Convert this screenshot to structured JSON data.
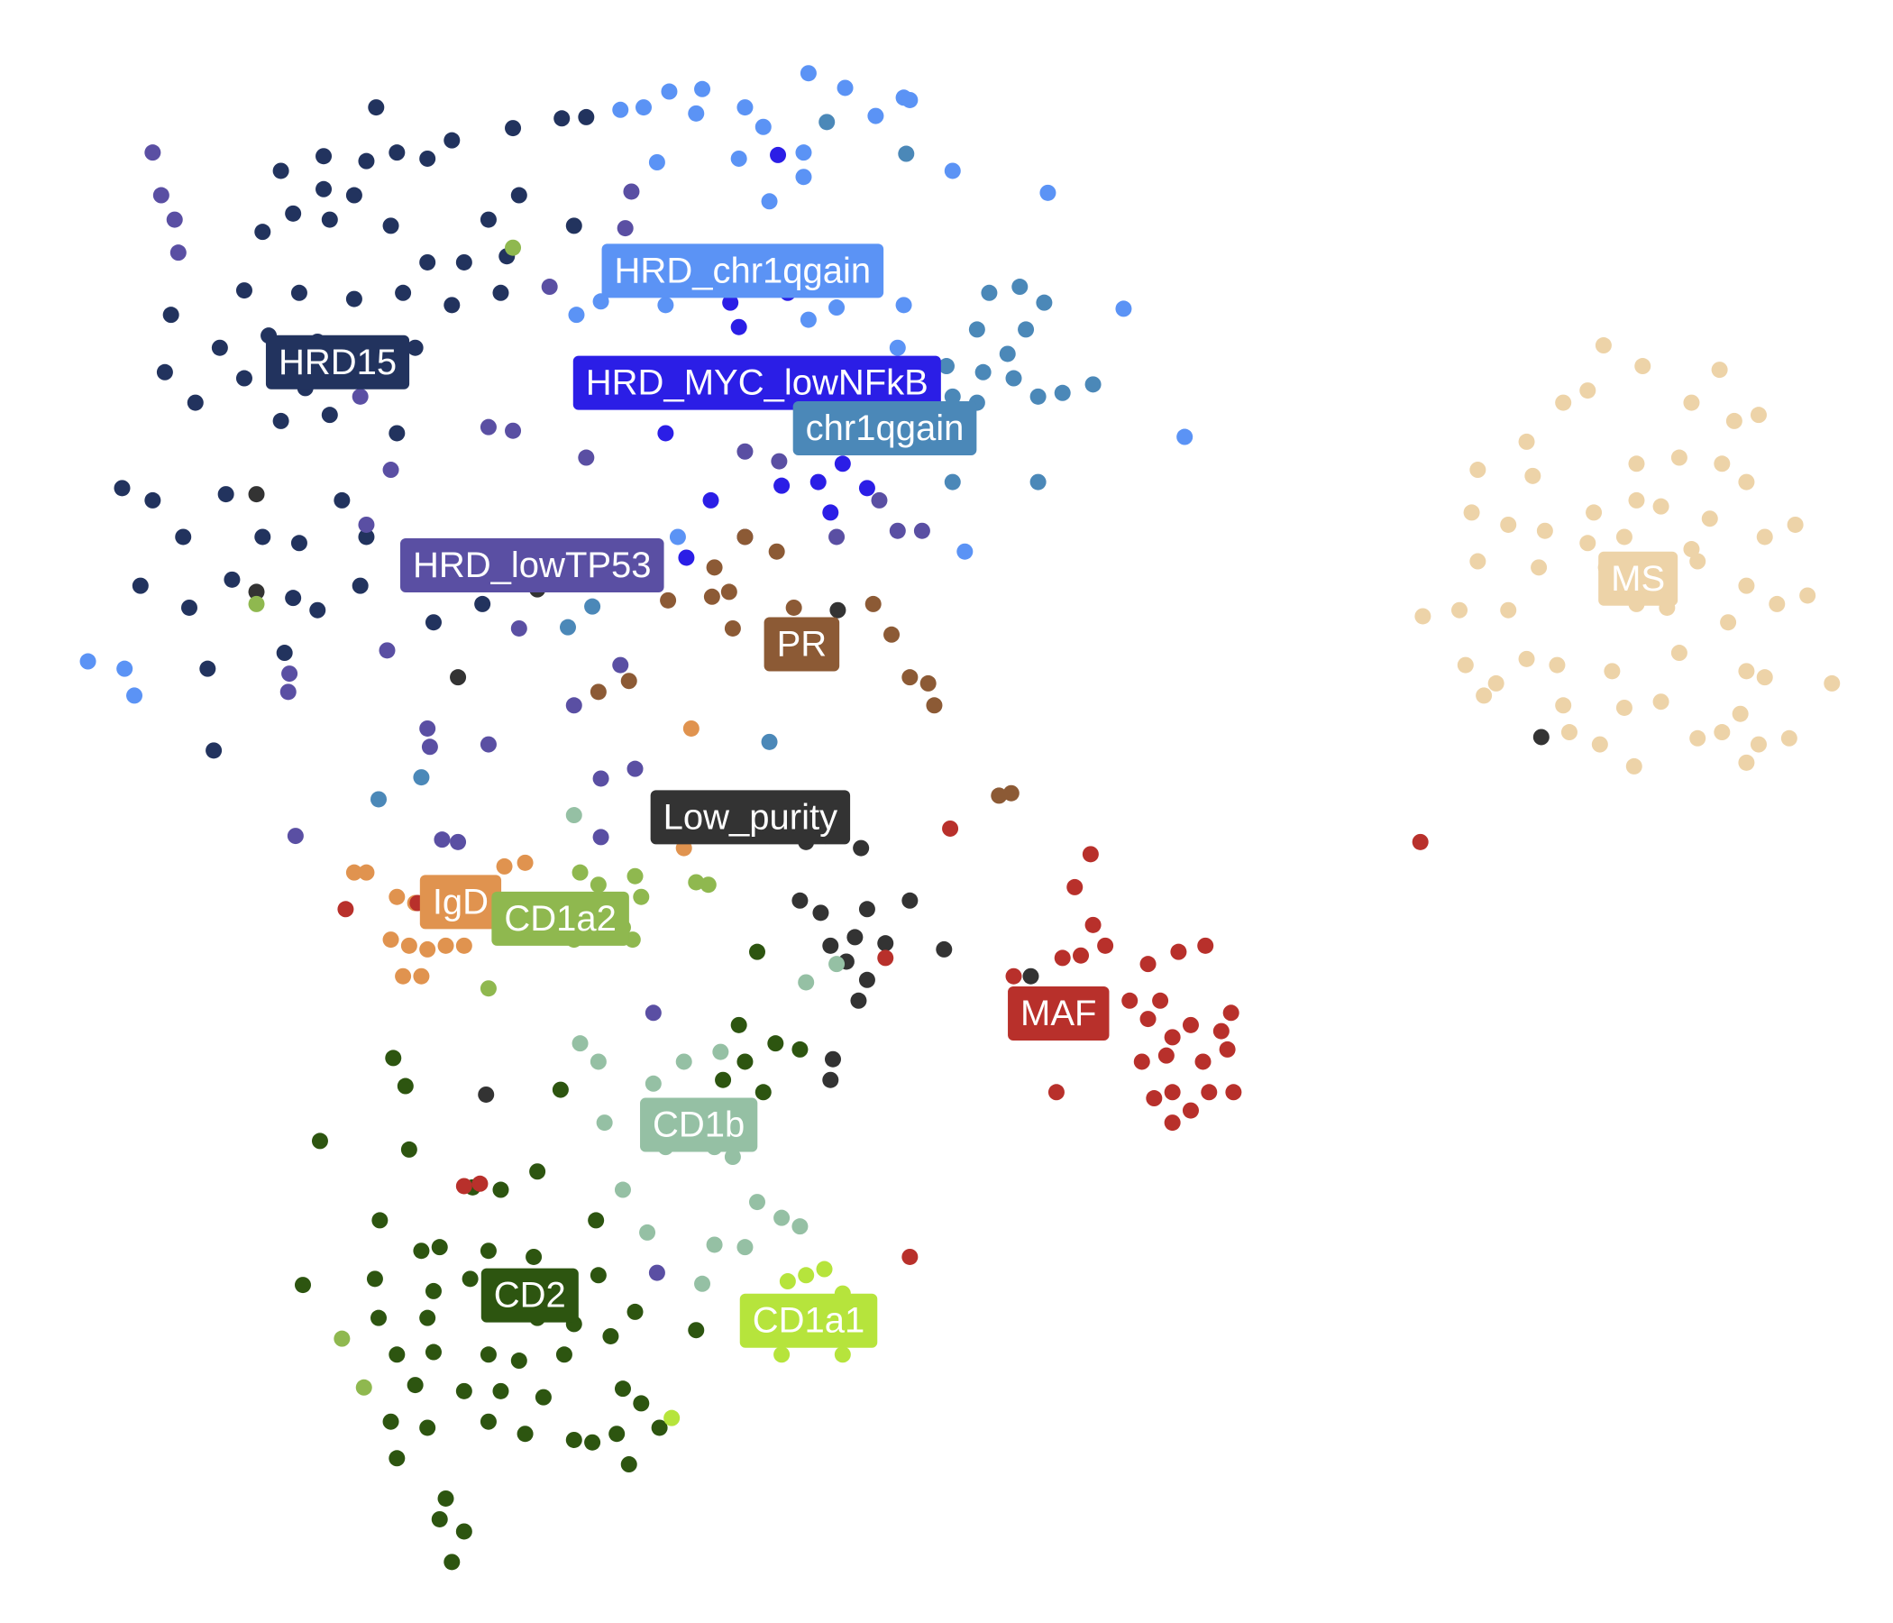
{
  "chart_data": {
    "type": "scatter",
    "xlim": [
      0,
      1550
    ],
    "ylim": [
      1330,
      0
    ],
    "series": [
      {
        "name": "HRD15",
        "color": "#22335e",
        "x": [
          308,
          230,
          265,
          300,
          325,
          350,
          370,
          265,
          290,
          240,
          215,
          270,
          320,
          350,
          380,
          415,
          200,
          245,
          290,
          330,
          370,
          410,
          140,
          180,
          220,
          260,
          300,
          340,
          135,
          200,
          250,
          160,
          230,
          270,
          325,
          100,
          125,
          150,
          185,
          215,
          245,
          280,
          300,
          115,
          190,
          240,
          260,
          155,
          295,
          355,
          395,
          170,
          233,
          175,
          420,
          460,
          480,
          425,
          470,
          400
        ],
        "y": [
          88,
          140,
          128,
          132,
          125,
          130,
          115,
          155,
          160,
          175,
          190,
          180,
          185,
          215,
          215,
          210,
          238,
          240,
          245,
          240,
          250,
          240,
          258,
          285,
          275,
          280,
          290,
          285,
          305,
          310,
          318,
          330,
          345,
          340,
          355,
          400,
          410,
          440,
          405,
          440,
          445,
          410,
          440,
          480,
          475,
          490,
          500,
          498,
          480,
          510,
          495,
          548,
          535,
          615,
          105,
          97,
          96,
          160,
          185,
          180
        ]
      },
      {
        "name": "HRD_chr1qgain",
        "color": "#5b93f5",
        "x": [
          548,
          575,
          662,
          692,
          740,
          745,
          508,
          527,
          570,
          610,
          625,
          717,
          538,
          605,
          658,
          780,
          858,
          492,
          472,
          520,
          545,
          610,
          662,
          685,
          740,
          920,
          970,
          790,
          72,
          102,
          110,
          513,
          555,
          735,
          760,
          658,
          630
        ],
        "y": [
          75,
          73,
          60,
          72,
          80,
          82,
          90,
          88,
          93,
          88,
          104,
          95,
          133,
          130,
          145,
          140,
          158,
          247,
          258,
          230,
          250,
          225,
          262,
          252,
          250,
          253,
          358,
          452,
          542,
          548,
          570,
          475,
          440,
          285,
          318,
          125,
          165
        ]
      },
      {
        "name": "HRD_MYC_lowNFkB",
        "color": "#2b1ee6",
        "x": [
          637,
          550,
          580,
          600,
          620,
          645,
          598,
          605,
          560,
          595,
          630,
          545,
          580,
          658,
          700,
          582,
          562,
          640,
          670,
          690,
          710,
          680
        ],
        "y": [
          127,
          210,
          210,
          225,
          235,
          240,
          248,
          268,
          300,
          305,
          300,
          355,
          325,
          345,
          350,
          410,
          457,
          398,
          395,
          380,
          400,
          420
        ]
      },
      {
        "name": "chr1qgain",
        "color": "#4b88b8",
        "x": [
          677,
          742,
          810,
          835,
          855,
          800,
          825,
          840,
          775,
          805,
          830,
          870,
          895,
          850,
          725,
          745,
          780,
          800,
          465,
          485,
          345,
          310,
          630,
          512,
          780,
          850
        ],
        "y": [
          100,
          126,
          240,
          235,
          248,
          270,
          290,
          270,
          300,
          305,
          310,
          322,
          315,
          325,
          318,
          320,
          325,
          330,
          514,
          497,
          637,
          655,
          608,
          475,
          395,
          395
        ]
      },
      {
        "name": "HRD_lowTP53",
        "color": "#5a4fa3",
        "x": [
          125,
          132,
          143,
          146,
          517,
          512,
          450,
          712,
          400,
          420,
          480,
          320,
          300,
          610,
          638,
          720,
          735,
          755,
          685,
          610,
          425,
          317,
          237,
          236,
          350,
          400,
          352,
          470,
          508,
          492,
          520,
          242,
          375,
          362,
          492,
          535,
          538,
          295
        ],
        "y": [
          125,
          160,
          180,
          207,
          157,
          187,
          235,
          230,
          350,
          353,
          375,
          385,
          430,
          370,
          378,
          410,
          435,
          435,
          440,
          440,
          515,
          533,
          552,
          567,
          597,
          610,
          612,
          578,
          545,
          638,
          630,
          685,
          690,
          688,
          686,
          830,
          1043,
          325
        ]
      },
      {
        "name": "PR",
        "color": "#8c5a35",
        "x": [
          547,
          583,
          597,
          610,
          636,
          650,
          600,
          640,
          640,
          675,
          715,
          730,
          745,
          760,
          765,
          515,
          490,
          828,
          818,
          585
        ],
        "y": [
          492,
          489,
          485,
          440,
          452,
          498,
          515,
          520,
          540,
          528,
          495,
          520,
          555,
          560,
          578,
          558,
          567,
          650,
          652,
          465
        ]
      },
      {
        "name": "Low_purity",
        "color": "#333333",
        "x": [
          320,
          210,
          210,
          380,
          425,
          440,
          485,
          375,
          597,
          630,
          660,
          676,
          705,
          655,
          672,
          710,
          745,
          680,
          700,
          725,
          773,
          693,
          710,
          703,
          682,
          680,
          398,
          844,
          1262,
          686
        ],
        "y": [
          305,
          405,
          485,
          465,
          475,
          483,
          465,
          555,
          670,
          685,
          690,
          685,
          695,
          738,
          748,
          745,
          738,
          775,
          768,
          773,
          778,
          788,
          803,
          820,
          868,
          885,
          897,
          800,
          604,
          500
        ]
      },
      {
        "name": "IgD",
        "color": "#e0934f",
        "x": [
          566,
          413,
          430,
          325,
          340,
          385,
          320,
          335,
          350,
          365,
          380,
          330,
          345,
          560,
          290,
          300
        ],
        "y": [
          597,
          710,
          707,
          735,
          740,
          740,
          770,
          775,
          778,
          775,
          775,
          800,
          800,
          695,
          715,
          715
        ]
      },
      {
        "name": "CD1a2",
        "color": "#8fb84f",
        "x": [
          420,
          490,
          520,
          525,
          570,
          580,
          500,
          510,
          518,
          470,
          400,
          575,
          280,
          298,
          210,
          475
        ],
        "y": [
          203,
          725,
          718,
          735,
          723,
          725,
          755,
          760,
          770,
          770,
          810,
          908,
          1097,
          1137,
          495,
          715
        ]
      },
      {
        "name": "CD1b",
        "color": "#95c0a4",
        "x": [
          470,
          475,
          490,
          535,
          560,
          590,
          660,
          685,
          495,
          545,
          585,
          600,
          600,
          620,
          640,
          655,
          585,
          610,
          575,
          530,
          510
        ],
        "y": [
          668,
          855,
          870,
          888,
          870,
          862,
          805,
          790,
          920,
          940,
          940,
          935,
          948,
          985,
          998,
          1005,
          1020,
          1022,
          1052,
          1010,
          975
        ]
      },
      {
        "name": "CD2",
        "color": "#2d5510",
        "x": [
          620,
          605,
          635,
          655,
          610,
          625,
          592,
          322,
          332,
          459,
          262,
          335,
          440,
          410,
          387,
          311,
          345,
          360,
          400,
          437,
          488,
          307,
          248,
          355,
          385,
          490,
          520,
          310,
          350,
          440,
          470,
          500,
          325,
          355,
          400,
          425,
          462,
          340,
          380,
          410,
          445,
          510,
          525,
          320,
          350,
          400,
          430,
          470,
          505,
          540,
          325,
          365,
          380,
          360,
          370,
          515,
          485,
          570,
          630
        ],
        "y": [
          780,
          840,
          855,
          860,
          870,
          895,
          885,
          867,
          890,
          893,
          935,
          942,
          960,
          975,
          973,
          1000,
          1025,
          1022,
          1025,
          1030,
          1000,
          1048,
          1053,
          1058,
          1048,
          1045,
          1075,
          1080,
          1080,
          1080,
          1085,
          1095,
          1110,
          1108,
          1110,
          1115,
          1110,
          1135,
          1140,
          1140,
          1145,
          1138,
          1150,
          1165,
          1170,
          1165,
          1175,
          1180,
          1175,
          1170,
          1195,
          1228,
          1255,
          1245,
          1280,
          1200,
          1182,
          1090,
          1083
        ]
      },
      {
        "name": "CD1a1",
        "color": "#b6e43c",
        "x": [
          645,
          660,
          675,
          690,
          680,
          670,
          710,
          650,
          690,
          640,
          550,
          685
        ],
        "y": [
          1050,
          1045,
          1040,
          1060,
          1075,
          1080,
          1075,
          1085,
          1110,
          1110,
          1162,
          1095
        ]
      },
      {
        "name": "MAF",
        "color": "#b8302b",
        "x": [
          283,
          342,
          380,
          393,
          725,
          778,
          893,
          880,
          895,
          905,
          870,
          885,
          830,
          940,
          965,
          987,
          950,
          925,
          940,
          960,
          975,
          1000,
          1008,
          935,
          955,
          985,
          990,
          960,
          945,
          975,
          960,
          1010,
          745,
          1163,
          1005,
          865
        ],
        "y": [
          745,
          740,
          972,
          970,
          785,
          679,
          700,
          727,
          758,
          775,
          785,
          783,
          800,
          790,
          780,
          775,
          820,
          820,
          835,
          850,
          840,
          845,
          830,
          870,
          865,
          870,
          895,
          895,
          900,
          910,
          920,
          895,
          1030,
          690,
          860,
          895
        ]
      },
      {
        "name": "MS",
        "color": "#edd3a8",
        "x": [
          1313,
          1345,
          1408,
          1385,
          1420,
          1440,
          1280,
          1300,
          1250,
          1210,
          1255,
          1340,
          1375,
          1410,
          1305,
          1340,
          1360,
          1400,
          1430,
          1205,
          1235,
          1265,
          1300,
          1330,
          1385,
          1445,
          1470,
          1210,
          1260,
          1315,
          1345,
          1390,
          1430,
          1480,
          1165,
          1195,
          1235,
          1340,
          1365,
          1415,
          1455,
          1200,
          1225,
          1275,
          1320,
          1375,
          1430,
          1445,
          1500,
          1215,
          1280,
          1330,
          1360,
          1425,
          1390,
          1410,
          1440,
          1465,
          1285,
          1310,
          1338,
          1430,
          1250
        ],
        "y": [
          283,
          300,
          303,
          330,
          345,
          340,
          330,
          320,
          362,
          385,
          390,
          380,
          375,
          380,
          420,
          410,
          415,
          425,
          395,
          420,
          430,
          435,
          445,
          440,
          450,
          440,
          430,
          460,
          465,
          465,
          465,
          460,
          480,
          488,
          505,
          500,
          500,
          495,
          498,
          510,
          495,
          545,
          560,
          545,
          550,
          535,
          550,
          555,
          560,
          570,
          578,
          580,
          575,
          585,
          605,
          600,
          610,
          605,
          600,
          610,
          628,
          625,
          540
        ]
      }
    ]
  }
}
